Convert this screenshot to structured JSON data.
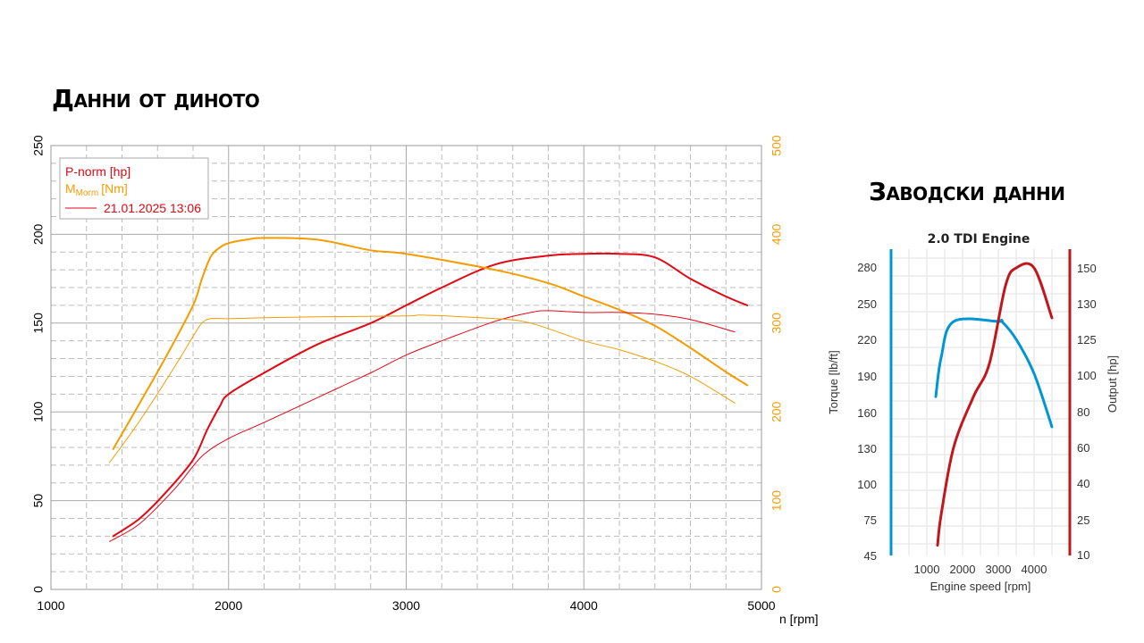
{
  "slide": {
    "dyno_title": "Данни от диното",
    "factory_title": "Заводски данни"
  },
  "colors": {
    "power": "#e30613",
    "torque": "#f59c00",
    "factory_torque": "#0095d5",
    "factory_power": "#c0171c"
  },
  "chart_data": [
    {
      "type": "line",
      "title": "",
      "legend": {
        "placement": "top-left",
        "entries": [
          "P-norm [hp]",
          "M",
          "Morm",
          "[Nm]",
          "21.01.2025 13:06"
        ]
      },
      "xlabel": "n [rpm]",
      "xlim": [
        1000,
        5000
      ],
      "xticks": [
        "1000",
        "2000",
        "3000",
        "4000",
        "5000"
      ],
      "ylim_left": [
        0,
        250
      ],
      "yticks_left": [
        "0",
        "50",
        "100",
        "150",
        "200",
        "250"
      ],
      "ylim_right": [
        0,
        500
      ],
      "yticks_right": [
        "0",
        "100",
        "200",
        "300",
        "400",
        "500"
      ],
      "grid": true,
      "series": [
        {
          "name": "P-norm [hp]",
          "axis": "left",
          "role": "power-main",
          "x": [
            1350,
            1500,
            1650,
            1800,
            1880,
            1950,
            2000,
            2200,
            2500,
            2800,
            3000,
            3200,
            3500,
            3800,
            4000,
            4200,
            4400,
            4600,
            4800,
            4920
          ],
          "y": [
            30,
            40,
            55,
            73,
            90,
            103,
            110,
            122,
            138,
            150,
            160,
            170,
            183,
            188,
            189,
            189,
            187,
            175,
            165,
            160
          ]
        },
        {
          "name": "M [Nm]",
          "axis": "right",
          "role": "torque-main",
          "x": [
            1350,
            1500,
            1650,
            1800,
            1850,
            1900,
            1950,
            2000,
            2100,
            2200,
            2500,
            2800,
            3000,
            3500,
            3800,
            4000,
            4200,
            4400,
            4600,
            4800,
            4920
          ],
          "y": [
            158,
            210,
            263,
            320,
            350,
            375,
            385,
            390,
            394,
            396,
            394,
            382,
            378,
            360,
            345,
            330,
            315,
            297,
            272,
            245,
            230
          ]
        },
        {
          "name": "P-norm [hp] 21.01.2025 13:06",
          "axis": "left",
          "role": "power-ref",
          "x": [
            1330,
            1500,
            1700,
            1850,
            2000,
            2200,
            2500,
            2800,
            3000,
            3200,
            3500,
            3700,
            3800,
            4000,
            4200,
            4400,
            4600,
            4850
          ],
          "y": [
            27,
            37,
            57,
            75,
            85,
            94,
            108,
            122,
            132,
            140,
            151,
            156,
            157,
            156,
            156,
            155,
            152,
            145
          ]
        },
        {
          "name": "M [Nm] 21.01.2025 13:06",
          "axis": "right",
          "role": "torque-ref",
          "x": [
            1330,
            1500,
            1700,
            1800,
            1850,
            1900,
            2000,
            2200,
            2500,
            3000,
            3100,
            3500,
            3700,
            4000,
            4200,
            4400,
            4600,
            4850
          ],
          "y": [
            143,
            190,
            252,
            285,
            300,
            305,
            305,
            306,
            307,
            308,
            309,
            305,
            300,
            280,
            270,
            257,
            240,
            210
          ]
        }
      ]
    },
    {
      "type": "line",
      "title": "2.0 TDI Engine",
      "xlabel": "Engine speed [rpm]",
      "ylabel_left": "Torque [lb/ft]",
      "ylabel_right": "Output [hp]",
      "xlim": [
        0,
        5000
      ],
      "xticks": [
        "1000",
        "2000",
        "3000",
        "4000"
      ],
      "yticks_left": [
        "45",
        "75",
        "100",
        "130",
        "160",
        "190",
        "220",
        "250",
        "280"
      ],
      "yticks_right": [
        "10",
        "25",
        "40",
        "60",
        "80",
        "100",
        "125",
        "130",
        "150"
      ],
      "grid": true,
      "series": [
        {
          "name": "Torque [lb/ft]",
          "axis": "left",
          "role": "factory-torque",
          "x": [
            1250,
            1400,
            1750,
            3000,
            3100,
            3500,
            4000,
            4500
          ],
          "y": [
            173,
            205,
            235,
            235,
            235,
            220,
            192,
            148
          ]
        },
        {
          "name": "Output [hp]",
          "axis": "right",
          "role": "factory-power",
          "x": [
            1300,
            1400,
            1750,
            2300,
            2750,
            3200,
            3500,
            4000,
            4500
          ],
          "y": [
            14,
            27,
            60,
            88,
            108,
            140,
            150,
            150,
            128
          ]
        }
      ]
    }
  ]
}
